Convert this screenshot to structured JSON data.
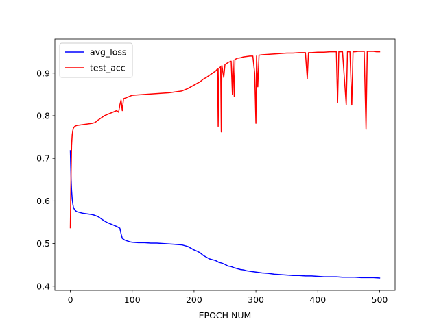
{
  "chart_data": {
    "type": "line",
    "xlabel": "EPOCH NUM",
    "ylabel": "",
    "xlim": [
      -25,
      525
    ],
    "ylim": [
      0.39,
      0.98
    ],
    "x_ticks": [
      0,
      100,
      200,
      300,
      400,
      500
    ],
    "y_ticks": [
      0.4,
      0.5,
      0.6,
      0.7,
      0.8,
      0.9
    ],
    "x_tick_labels": [
      "0",
      "100",
      "200",
      "300",
      "400",
      "500"
    ],
    "y_tick_labels": [
      "0.4",
      "0.5",
      "0.6",
      "0.7",
      "0.8",
      "0.9"
    ],
    "grid": false,
    "legend_position": "top-left",
    "series": [
      {
        "name": "avg_loss",
        "color": "#0000ff",
        "points": [
          [
            0,
            0.718
          ],
          [
            1,
            0.66
          ],
          [
            2,
            0.625
          ],
          [
            3,
            0.605
          ],
          [
            4,
            0.593
          ],
          [
            5,
            0.585
          ],
          [
            7,
            0.579
          ],
          [
            10,
            0.575
          ],
          [
            15,
            0.573
          ],
          [
            20,
            0.571
          ],
          [
            25,
            0.57
          ],
          [
            30,
            0.569
          ],
          [
            35,
            0.568
          ],
          [
            40,
            0.566
          ],
          [
            45,
            0.563
          ],
          [
            50,
            0.558
          ],
          [
            55,
            0.553
          ],
          [
            60,
            0.549
          ],
          [
            65,
            0.546
          ],
          [
            70,
            0.543
          ],
          [
            75,
            0.54
          ],
          [
            80,
            0.536
          ],
          [
            82,
            0.523
          ],
          [
            84,
            0.512
          ],
          [
            88,
            0.508
          ],
          [
            92,
            0.506
          ],
          [
            96,
            0.504
          ],
          [
            100,
            0.503
          ],
          [
            110,
            0.502
          ],
          [
            120,
            0.502
          ],
          [
            130,
            0.501
          ],
          [
            140,
            0.501
          ],
          [
            150,
            0.5
          ],
          [
            160,
            0.499
          ],
          [
            170,
            0.498
          ],
          [
            180,
            0.497
          ],
          [
            185,
            0.495
          ],
          [
            190,
            0.493
          ],
          [
            195,
            0.489
          ],
          [
            200,
            0.485
          ],
          [
            205,
            0.482
          ],
          [
            210,
            0.478
          ],
          [
            215,
            0.472
          ],
          [
            220,
            0.468
          ],
          [
            225,
            0.464
          ],
          [
            230,
            0.462
          ],
          [
            235,
            0.46
          ],
          [
            240,
            0.456
          ],
          [
            245,
            0.454
          ],
          [
            250,
            0.451
          ],
          [
            255,
            0.447
          ],
          [
            260,
            0.446
          ],
          [
            265,
            0.443
          ],
          [
            270,
            0.441
          ],
          [
            275,
            0.439
          ],
          [
            280,
            0.438
          ],
          [
            285,
            0.436
          ],
          [
            290,
            0.435
          ],
          [
            295,
            0.434
          ],
          [
            300,
            0.433
          ],
          [
            310,
            0.431
          ],
          [
            320,
            0.43
          ],
          [
            330,
            0.428
          ],
          [
            340,
            0.427
          ],
          [
            350,
            0.426
          ],
          [
            360,
            0.425
          ],
          [
            370,
            0.425
          ],
          [
            380,
            0.424
          ],
          [
            390,
            0.424
          ],
          [
            400,
            0.423
          ],
          [
            410,
            0.422
          ],
          [
            420,
            0.422
          ],
          [
            430,
            0.422
          ],
          [
            440,
            0.421
          ],
          [
            450,
            0.421
          ],
          [
            460,
            0.421
          ],
          [
            470,
            0.42
          ],
          [
            480,
            0.42
          ],
          [
            490,
            0.42
          ],
          [
            500,
            0.419
          ]
        ]
      },
      {
        "name": "test_acc",
        "color": "#ff0000",
        "points": [
          [
            0,
            0.537
          ],
          [
            1,
            0.65
          ],
          [
            2,
            0.73
          ],
          [
            3,
            0.755
          ],
          [
            4,
            0.765
          ],
          [
            5,
            0.771
          ],
          [
            7,
            0.775
          ],
          [
            10,
            0.777
          ],
          [
            15,
            0.778
          ],
          [
            20,
            0.779
          ],
          [
            25,
            0.78
          ],
          [
            30,
            0.781
          ],
          [
            35,
            0.782
          ],
          [
            40,
            0.784
          ],
          [
            45,
            0.79
          ],
          [
            50,
            0.795
          ],
          [
            55,
            0.8
          ],
          [
            60,
            0.803
          ],
          [
            65,
            0.806
          ],
          [
            70,
            0.809
          ],
          [
            75,
            0.812
          ],
          [
            78,
            0.808
          ],
          [
            80,
            0.825
          ],
          [
            82,
            0.837
          ],
          [
            84,
            0.812
          ],
          [
            86,
            0.84
          ],
          [
            90,
            0.842
          ],
          [
            95,
            0.845
          ],
          [
            100,
            0.848
          ],
          [
            110,
            0.849
          ],
          [
            120,
            0.85
          ],
          [
            130,
            0.851
          ],
          [
            140,
            0.852
          ],
          [
            150,
            0.853
          ],
          [
            160,
            0.854
          ],
          [
            170,
            0.856
          ],
          [
            180,
            0.858
          ],
          [
            185,
            0.861
          ],
          [
            190,
            0.864
          ],
          [
            195,
            0.868
          ],
          [
            200,
            0.872
          ],
          [
            205,
            0.876
          ],
          [
            210,
            0.88
          ],
          [
            215,
            0.886
          ],
          [
            220,
            0.89
          ],
          [
            225,
            0.895
          ],
          [
            230,
            0.9
          ],
          [
            235,
            0.905
          ],
          [
            238,
            0.91
          ],
          [
            239,
            0.775
          ],
          [
            240,
            0.91
          ],
          [
            243,
            0.915
          ],
          [
            244,
            0.762
          ],
          [
            245,
            0.918
          ],
          [
            248,
            0.89
          ],
          [
            250,
            0.92
          ],
          [
            255,
            0.925
          ],
          [
            260,
            0.928
          ],
          [
            262,
            0.85
          ],
          [
            263,
            0.93
          ],
          [
            265,
            0.845
          ],
          [
            266,
            0.932
          ],
          [
            270,
            0.935
          ],
          [
            275,
            0.936
          ],
          [
            280,
            0.938
          ],
          [
            285,
            0.939
          ],
          [
            290,
            0.94
          ],
          [
            295,
            0.94
          ],
          [
            298,
            0.9
          ],
          [
            300,
            0.782
          ],
          [
            301,
            0.94
          ],
          [
            303,
            0.868
          ],
          [
            305,
            0.942
          ],
          [
            310,
            0.943
          ],
          [
            320,
            0.944
          ],
          [
            330,
            0.945
          ],
          [
            340,
            0.946
          ],
          [
            350,
            0.947
          ],
          [
            360,
            0.947
          ],
          [
            370,
            0.948
          ],
          [
            380,
            0.948
          ],
          [
            383,
            0.887
          ],
          [
            385,
            0.948
          ],
          [
            390,
            0.948
          ],
          [
            400,
            0.949
          ],
          [
            410,
            0.949
          ],
          [
            420,
            0.95
          ],
          [
            430,
            0.95
          ],
          [
            432,
            0.83
          ],
          [
            434,
            0.95
          ],
          [
            440,
            0.95
          ],
          [
            446,
            0.825
          ],
          [
            448,
            0.95
          ],
          [
            452,
            0.95
          ],
          [
            455,
            0.825
          ],
          [
            457,
            0.95
          ],
          [
            460,
            0.95
          ],
          [
            465,
            0.951
          ],
          [
            470,
            0.951
          ],
          [
            475,
            0.951
          ],
          [
            478,
            0.768
          ],
          [
            480,
            0.951
          ],
          [
            485,
            0.951
          ],
          [
            490,
            0.951
          ],
          [
            495,
            0.95
          ],
          [
            500,
            0.95
          ]
        ]
      }
    ]
  }
}
